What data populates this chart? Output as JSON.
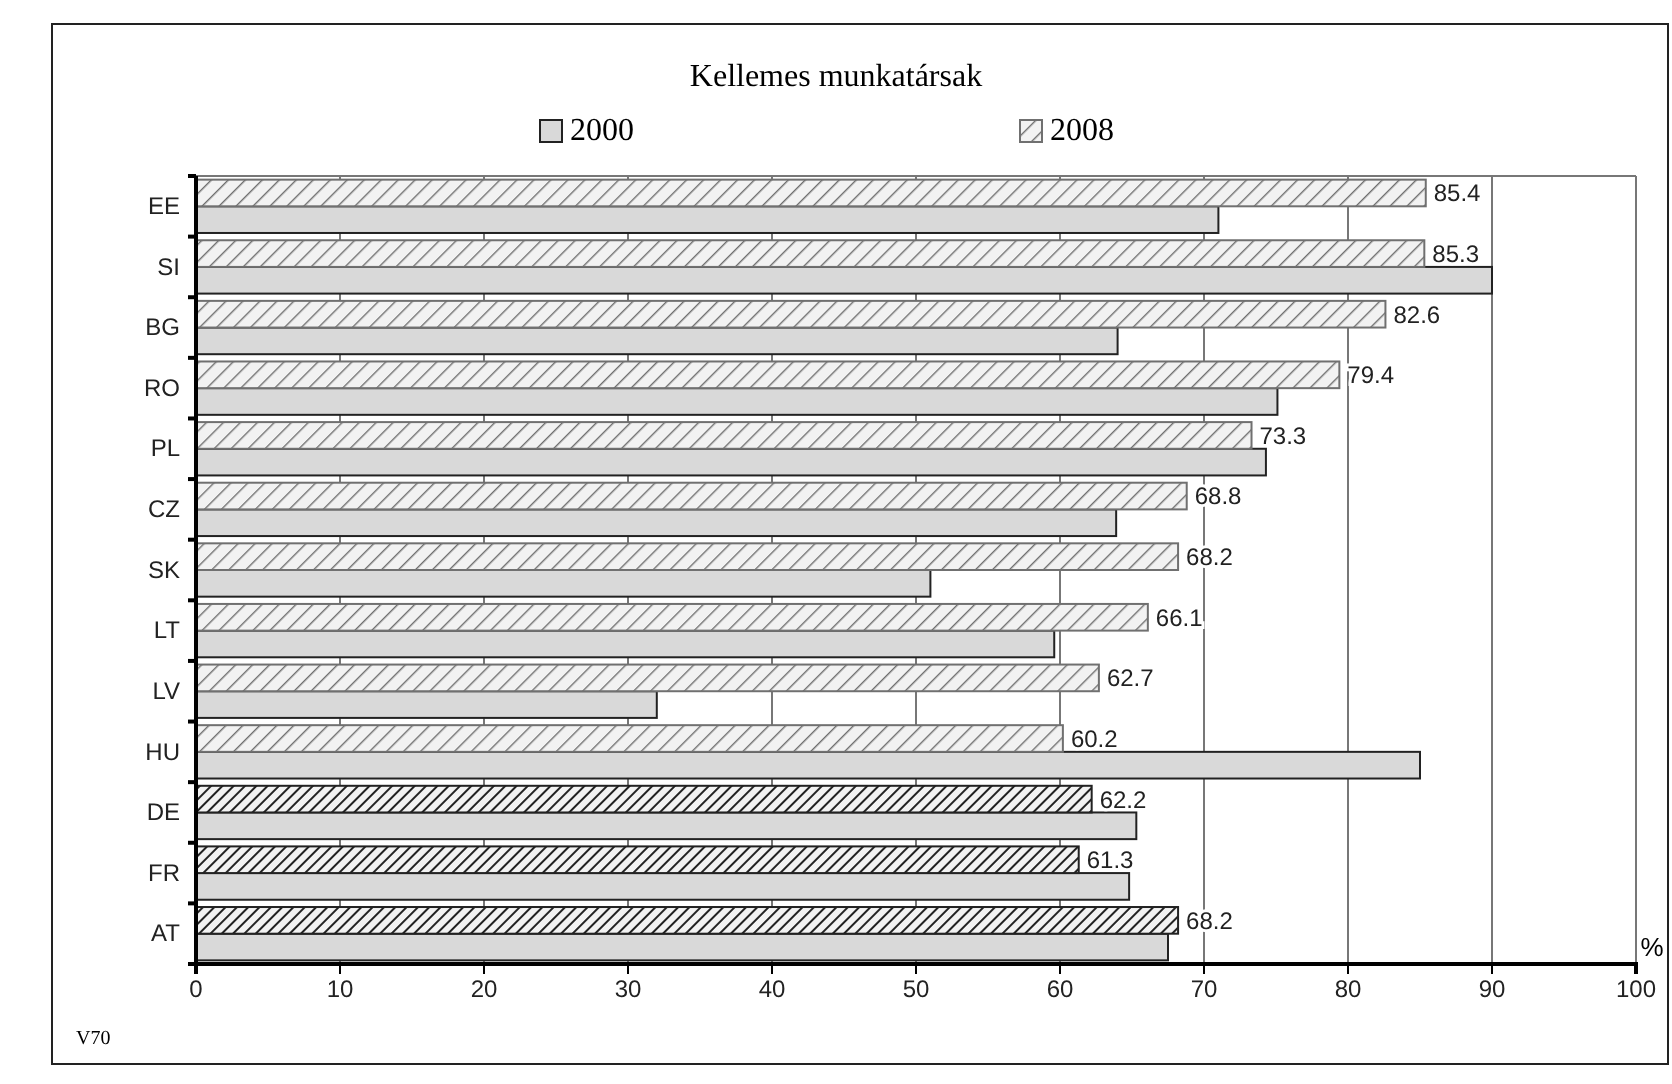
{
  "chart_data": {
    "type": "bar",
    "orientation": "horizontal",
    "title": "Kellemes munkatársak",
    "xlabel": "%",
    "categories": [
      "EE",
      "SI",
      "BG",
      "RO",
      "PL",
      "CZ",
      "SK",
      "LT",
      "LV",
      "HU",
      "DE",
      "FR",
      "AT"
    ],
    "series": [
      {
        "name": "2000",
        "color": "#d9d9d9",
        "values": [
          71.0,
          90.0,
          64.0,
          75.1,
          74.3,
          63.9,
          51.0,
          59.6,
          32.0,
          85.0,
          65.3,
          64.8,
          67.5
        ]
      },
      {
        "name": "2008",
        "color": "#707070",
        "colors": [
          "#707070",
          "#707070",
          "#707070",
          "#707070",
          "#707070",
          "#707070",
          "#707070",
          "#707070",
          "#707070",
          "#707070",
          "#222222",
          "#222222",
          "#222222"
        ],
        "values": [
          85.4,
          85.3,
          82.6,
          79.4,
          73.3,
          68.8,
          68.2,
          66.1,
          62.7,
          60.2,
          62.2,
          61.3,
          68.2
        ],
        "value_labels": [
          "85.4",
          "85.3",
          "82.6",
          "79.4",
          "73.3",
          "68.8",
          "68.2",
          "66.1",
          "62.7",
          "60.2",
          "62.2",
          "61.3",
          "68.2"
        ]
      }
    ],
    "xlim": [
      0,
      100
    ],
    "xticks": [
      0,
      10,
      20,
      30,
      40,
      50,
      60,
      70,
      80,
      90,
      100
    ],
    "grid": "x",
    "legend": "top",
    "annotations": [
      "V70"
    ]
  }
}
